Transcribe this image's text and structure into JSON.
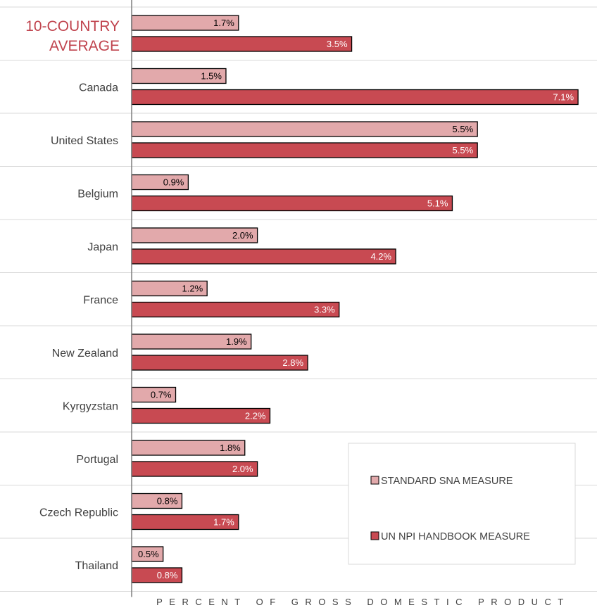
{
  "chart_data": {
    "type": "bar",
    "orientation": "horizontal",
    "categories": [
      "10-COUNTRY AVERAGE",
      "Canada",
      "United States",
      "Belgium",
      "Japan",
      "France",
      "New Zealand",
      "Kyrgyzstan",
      "Portugal",
      "Czech Republic",
      "Thailand"
    ],
    "highlight_category": "10-COUNTRY AVERAGE",
    "series": [
      {
        "name": "STANDARD SNA MEASURE",
        "color": "#e2a9ab",
        "values": [
          1.7,
          1.5,
          5.5,
          0.9,
          2.0,
          1.2,
          1.9,
          0.7,
          1.8,
          0.8,
          0.5
        ],
        "labels": [
          "1.7%",
          "1.5%",
          "5.5%",
          "0.9%",
          "2.0%",
          "1.2%",
          "1.9%",
          "0.7%",
          "1.8%",
          "0.8%",
          "0.5%"
        ]
      },
      {
        "name": "UN NPI HANDBOOK MEASURE",
        "color": "#c84a52",
        "values": [
          3.5,
          7.1,
          5.5,
          5.1,
          4.2,
          3.3,
          2.8,
          2.2,
          2.0,
          1.7,
          0.8
        ],
        "labels": [
          "3.5%",
          "7.1%",
          "5.5%",
          "5.1%",
          "4.2%",
          "3.3%",
          "2.8%",
          "2.2%",
          "2.0%",
          "1.7%",
          "0.8%"
        ]
      }
    ],
    "xlabel": "PERCENT OF GROSS DOMESTIC PRODUCT",
    "ylabel": "",
    "xlim": [
      0,
      7.2
    ],
    "grid": "horizontal separators",
    "legend_position": "bottom-right"
  },
  "colors": {
    "highlight_text": "#c0444e",
    "axis_text": "#404040",
    "grid": "#d9d9d9"
  }
}
